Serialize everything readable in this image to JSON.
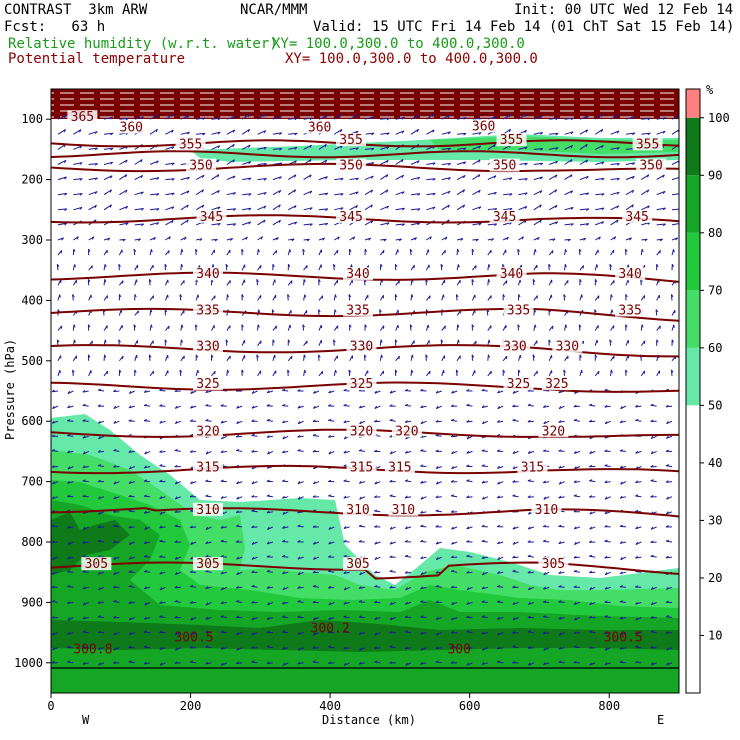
{
  "header": {
    "line1_left": "CONTRAST  3km ARW",
    "line1_mid": "NCAR/MMM",
    "line1_right": "Init: 00 UTC Wed 12 Feb 14",
    "line2_left": "Fcst:   63 h",
    "line2_right": "Valid: 15 UTC Fri 14 Feb 14 (01 ChT Sat 15 Feb 14)",
    "field1_name": "Relative humidity (w.r.t. water)",
    "field1_xy": "XY= 100.0,300.0 to 400.0,300.0",
    "field2_name": "Potential temperature",
    "field2_xy": "XY= 100.0,300.0 to 400.0,300.0"
  },
  "colors": {
    "maroon": "#7a0000",
    "rh_50": "#66e8a8",
    "rh_60": "#44dd66",
    "rh_70": "#22c93c",
    "rh_80": "#16a626",
    "rh_90": "#0e7a1a",
    "rh_100": "#ff8080",
    "wind": "#1a1a9a"
  },
  "chart_data": {
    "type": "heatmap",
    "xlabel": "Distance (km)",
    "ylabel": "Pressure (hPa)",
    "xlim": [
      0,
      900
    ],
    "ylim": [
      1050,
      50
    ],
    "x_ticks": [
      0,
      200,
      400,
      600,
      800
    ],
    "y_ticks": [
      100,
      200,
      300,
      400,
      500,
      600,
      700,
      800,
      900,
      1000
    ],
    "x_end_labels": [
      "W",
      "E"
    ],
    "colorbar": {
      "unit": "%",
      "levels": [
        10,
        20,
        30,
        40,
        50,
        60,
        70,
        80,
        90,
        100
      ]
    },
    "theta_contours": [
      {
        "value": "350",
        "p": 180,
        "labels": [
          {
            "x": 215,
            "text": "350"
          },
          {
            "x": 430,
            "text": "350"
          },
          {
            "x": 650,
            "text": "350"
          },
          {
            "x": 860,
            "text": "350"
          }
        ]
      },
      {
        "value": "345",
        "p": 265,
        "labels": [
          {
            "x": 230,
            "text": "345"
          },
          {
            "x": 430,
            "text": "345"
          },
          {
            "x": 650,
            "text": "345"
          },
          {
            "x": 840,
            "text": "345"
          }
        ]
      },
      {
        "value": "340",
        "p": 360,
        "labels": [
          {
            "x": 225,
            "text": "340"
          },
          {
            "x": 440,
            "text": "340"
          },
          {
            "x": 660,
            "text": "340"
          },
          {
            "x": 830,
            "text": "340"
          }
        ]
      },
      {
        "value": "335",
        "p": 420,
        "labels": [
          {
            "x": 225,
            "text": "335"
          },
          {
            "x": 440,
            "text": "335"
          },
          {
            "x": 670,
            "text": "335"
          },
          {
            "x": 830,
            "text": "335"
          }
        ]
      },
      {
        "value": "330",
        "p": 480,
        "labels": [
          {
            "x": 225,
            "text": "330"
          },
          {
            "x": 445,
            "text": "330"
          },
          {
            "x": 665,
            "text": "330"
          },
          {
            "x": 740,
            "text": "330"
          }
        ]
      },
      {
        "value": "325",
        "p": 542,
        "labels": [
          {
            "x": 225,
            "text": "325"
          },
          {
            "x": 445,
            "text": "325"
          },
          {
            "x": 670,
            "text": "325"
          },
          {
            "x": 725,
            "text": "325"
          }
        ]
      },
      {
        "value": "320",
        "p": 620,
        "labels": [
          {
            "x": 225,
            "text": "320"
          },
          {
            "x": 445,
            "text": "320"
          },
          {
            "x": 510,
            "text": "320"
          },
          {
            "x": 720,
            "text": "320"
          }
        ]
      },
      {
        "value": "315",
        "p": 680,
        "labels": [
          {
            "x": 225,
            "text": "315"
          },
          {
            "x": 445,
            "text": "315"
          },
          {
            "x": 500,
            "text": "315"
          },
          {
            "x": 690,
            "text": "315"
          }
        ]
      },
      {
        "value": "310",
        "p": 750,
        "labels": [
          {
            "x": 225,
            "text": "310"
          },
          {
            "x": 440,
            "text": "310"
          },
          {
            "x": 505,
            "text": "310"
          },
          {
            "x": 710,
            "text": "310"
          }
        ]
      },
      {
        "value": "305",
        "p": 840,
        "labels": [
          {
            "x": 65,
            "text": "305"
          },
          {
            "x": 225,
            "text": "305"
          },
          {
            "x": 440,
            "text": "305"
          },
          {
            "x": 720,
            "text": "305"
          }
        ]
      }
    ],
    "upper_labels": [
      {
        "x": 45,
        "p": 100,
        "text": "365"
      },
      {
        "x": 115,
        "p": 117,
        "text": "360"
      },
      {
        "x": 385,
        "p": 117,
        "text": "360"
      },
      {
        "x": 620,
        "p": 115,
        "text": "360"
      },
      {
        "x": 200,
        "p": 145,
        "text": "355"
      },
      {
        "x": 430,
        "p": 138,
        "text": "355"
      },
      {
        "x": 660,
        "p": 138,
        "text": "355"
      },
      {
        "x": 855,
        "p": 145,
        "text": "355"
      }
    ],
    "near_surface_labels": [
      {
        "x": 60,
        "p": 985,
        "text": "300.8"
      },
      {
        "x": 205,
        "p": 965,
        "text": "300.5"
      },
      {
        "x": 400,
        "p": 950,
        "text": "300.2"
      },
      {
        "x": 585,
        "p": 985,
        "text": "300"
      },
      {
        "x": 820,
        "p": 965,
        "text": "300.5"
      }
    ]
  }
}
